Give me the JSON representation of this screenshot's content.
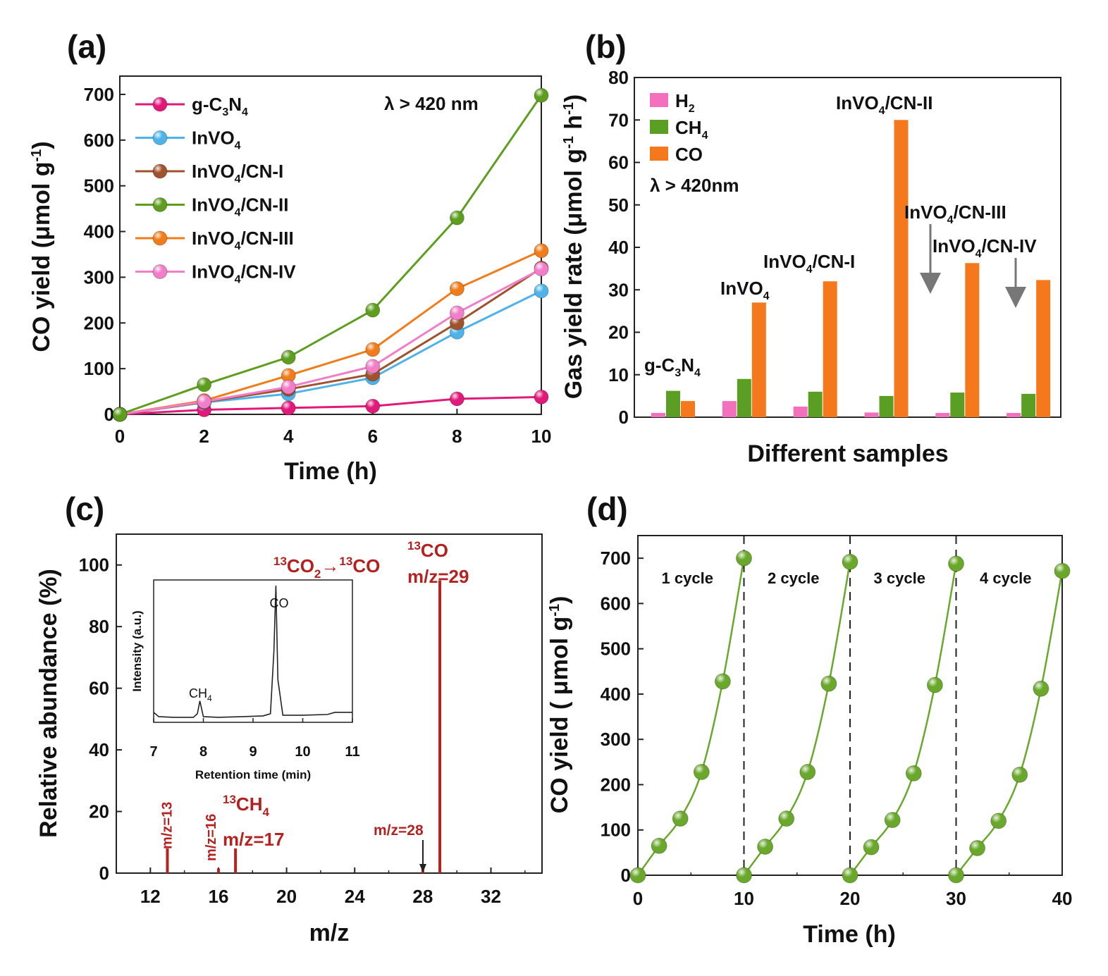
{
  "colors": {
    "g-C3N4": "#e0197a",
    "InVO4": "#4fb3ea",
    "InVO4/CN-I": "#a0522d",
    "InVO4/CN-II": "#5e9e1f",
    "InVO4/CN-III": "#f07c1a",
    "InVO4/CN-IV": "#f07ec8",
    "H2": "#f46fbd",
    "CH4": "#5a9e24",
    "CO": "#f5791c",
    "ms": "#b42222",
    "inset": "#222222",
    "cycle": "#6aa82c"
  },
  "chart_data": [
    {
      "panel": "(a)",
      "type": "line",
      "x": [
        0,
        2,
        4,
        6,
        8,
        10
      ],
      "series": [
        {
          "name": "g-C3N4",
          "label_main": "g-C",
          "label_sub1": "3",
          "label_mid": "N",
          "label_sub2": "4",
          "values": [
            0,
            10,
            14,
            18,
            34,
            38
          ]
        },
        {
          "name": "InVO4",
          "label_main": "InVO",
          "label_sub1": "4",
          "label_mid": "",
          "label_sub2": "",
          "values": [
            0,
            26,
            45,
            80,
            180,
            270
          ]
        },
        {
          "name": "InVO4/CN-I",
          "label_main": "InVO",
          "label_sub1": "4",
          "label_mid": "/CN-I",
          "label_sub2": "",
          "values": [
            0,
            27,
            55,
            88,
            200,
            320
          ]
        },
        {
          "name": "InVO4/CN-II",
          "label_main": "InVO",
          "label_sub1": "4",
          "label_mid": "/CN-II",
          "label_sub2": "",
          "values": [
            0,
            65,
            125,
            228,
            430,
            698
          ]
        },
        {
          "name": "InVO4/CN-III",
          "label_main": "InVO",
          "label_sub1": "4",
          "label_mid": "/CN-III",
          "label_sub2": "",
          "values": [
            0,
            30,
            85,
            142,
            275,
            358
          ]
        },
        {
          "name": "InVO4/CN-IV",
          "label_main": "InVO",
          "label_sub1": "4",
          "label_mid": "/CN-IV",
          "label_sub2": "",
          "values": [
            0,
            28,
            60,
            105,
            222,
            318
          ]
        }
      ],
      "xlim": [
        0,
        10
      ],
      "ylim": [
        0,
        740
      ],
      "xticks": [
        0,
        2,
        4,
        6,
        8,
        10
      ],
      "yticks": [
        0,
        100,
        200,
        300,
        400,
        500,
        600,
        700
      ],
      "xlabel": "Time (h)",
      "ylabel_main": "CO yield (μmol g",
      "ylabel_sup": "-1",
      "ylabel_end": ")",
      "annotation": "λ > 420 nm",
      "legend_position": "top-left"
    },
    {
      "panel": "(b)",
      "type": "bar",
      "categories": [
        "g-C3N4",
        "InVO4",
        "InVO4/CN-I",
        "InVO4/CN-II",
        "InVO4/CN-III",
        "InVO4/CN-IV"
      ],
      "series": [
        {
          "name": "H2",
          "label_main": "H",
          "label_sub": "2",
          "values": [
            1.0,
            3.8,
            2.5,
            1.1,
            1.0,
            1.0
          ]
        },
        {
          "name": "CH4",
          "label_main": "CH",
          "label_sub": "4",
          "values": [
            6.2,
            9.0,
            6.0,
            5.0,
            5.8,
            5.5
          ]
        },
        {
          "name": "CO",
          "label_main": "CO",
          "label_sub": "",
          "values": [
            3.8,
            27.0,
            32.0,
            70.0,
            36.3,
            32.3
          ]
        }
      ],
      "ylim": [
        0,
        80
      ],
      "yticks": [
        0,
        10,
        20,
        30,
        40,
        50,
        60,
        70,
        80
      ],
      "xlabel": "Different samples",
      "ylabel_main": "Gas yield rate (μmol g",
      "ylabel_sup1": "-1",
      "ylabel_mid": " h",
      "ylabel_sup2": "-1",
      "ylabel_end": ")",
      "annotation": "λ > 420nm",
      "bar_labels": [
        {
          "main": "g-C",
          "s1": "3",
          "mid": "N",
          "s2": "4"
        },
        {
          "main": "InVO",
          "s1": "4",
          "mid": "",
          "s2": ""
        },
        {
          "main": "InVO",
          "s1": "4",
          "mid": "/CN-I",
          "s2": ""
        },
        {
          "main": "InVO",
          "s1": "4",
          "mid": "/CN-II",
          "s2": ""
        },
        {
          "main": "InVO",
          "s1": "4",
          "mid": "/CN-III",
          "s2": ""
        },
        {
          "main": "InVO",
          "s1": "4",
          "mid": "/CN-IV",
          "s2": ""
        }
      ],
      "legend_position": "top-left"
    },
    {
      "panel": "(c)",
      "type": "bar",
      "peaks": [
        {
          "mz": 13,
          "abundance": 8,
          "label": "m/z=13"
        },
        {
          "mz": 16,
          "abundance": 1.5,
          "label": "m/z=16"
        },
        {
          "mz": 17,
          "abundance": 8,
          "label": "m/z=17"
        },
        {
          "mz": 28,
          "abundance": 1.5,
          "label": "m/z=28"
        },
        {
          "mz": 29,
          "abundance": 95,
          "label": "m/z=29"
        }
      ],
      "xlim": [
        10,
        35
      ],
      "ylim": [
        0,
        110
      ],
      "xticks": [
        12,
        16,
        20,
        24,
        28,
        32
      ],
      "yticks": [
        0,
        20,
        40,
        60,
        80,
        100
      ],
      "xlabel": "m/z",
      "ylabel": "Relative abundance (%)",
      "annotations": {
        "reaction_sup1": "13",
        "reaction_a": "CO",
        "reaction_sub": "2",
        "reaction_arrow": "→",
        "reaction_sup2": "13",
        "reaction_b": "CO",
        "co_sup": "13",
        "co_label": "CO",
        "ch4_sup": "13",
        "ch4_label": "CH",
        "ch4_sub": "4"
      },
      "inset": {
        "type": "line",
        "x": [
          7.0,
          7.1,
          7.4,
          7.8,
          7.88,
          7.93,
          8.0,
          8.3,
          8.8,
          9.2,
          9.35,
          9.42,
          9.46,
          9.5,
          9.6,
          10.0,
          10.5,
          10.65,
          11.0
        ],
        "y": [
          0.07,
          0.04,
          0.035,
          0.035,
          0.06,
          0.15,
          0.04,
          0.035,
          0.04,
          0.045,
          0.06,
          0.5,
          0.96,
          0.3,
          0.05,
          0.05,
          0.055,
          0.07,
          0.07
        ],
        "xlim": [
          7,
          11
        ],
        "xticks": [
          7,
          8,
          9,
          10,
          11
        ],
        "xlabel": "Retention time (min)",
        "ylabel": "Intensity (a.u.)",
        "peak_co": "CO",
        "peak_ch4_main": "CH",
        "peak_ch4_sub": "4"
      }
    },
    {
      "panel": "(d)",
      "type": "line",
      "x": [
        0,
        2,
        4,
        6,
        8,
        10,
        10,
        12,
        14,
        16,
        18,
        20,
        20,
        22,
        24,
        26,
        28,
        30,
        30,
        32,
        34,
        36,
        38,
        40
      ],
      "cycles": [
        {
          "label": "1 cycle",
          "x": [
            0,
            2,
            4,
            6,
            8,
            10
          ],
          "values": [
            0,
            65,
            125,
            228,
            428,
            700
          ]
        },
        {
          "label": "2 cycle",
          "x": [
            10,
            12,
            14,
            16,
            18,
            20
          ],
          "values": [
            0,
            63,
            125,
            228,
            423,
            692
          ]
        },
        {
          "label": "3 cycle",
          "x": [
            20,
            22,
            24,
            26,
            28,
            30
          ],
          "values": [
            0,
            62,
            122,
            225,
            420,
            688
          ]
        },
        {
          "label": "4 cycle",
          "x": [
            30,
            32,
            34,
            36,
            38,
            40
          ],
          "values": [
            0,
            60,
            120,
            222,
            412,
            672
          ]
        }
      ],
      "dividers": [
        10,
        20,
        30
      ],
      "xlim": [
        0,
        40
      ],
      "ylim": [
        0,
        750
      ],
      "xticks": [
        0,
        10,
        20,
        30,
        40
      ],
      "yticks": [
        0,
        100,
        200,
        300,
        400,
        500,
        600,
        700
      ],
      "xlabel": "Time (h)",
      "ylabel_main": "CO yield ( μmol g",
      "ylabel_sup": "-1",
      "ylabel_end": ")"
    }
  ]
}
